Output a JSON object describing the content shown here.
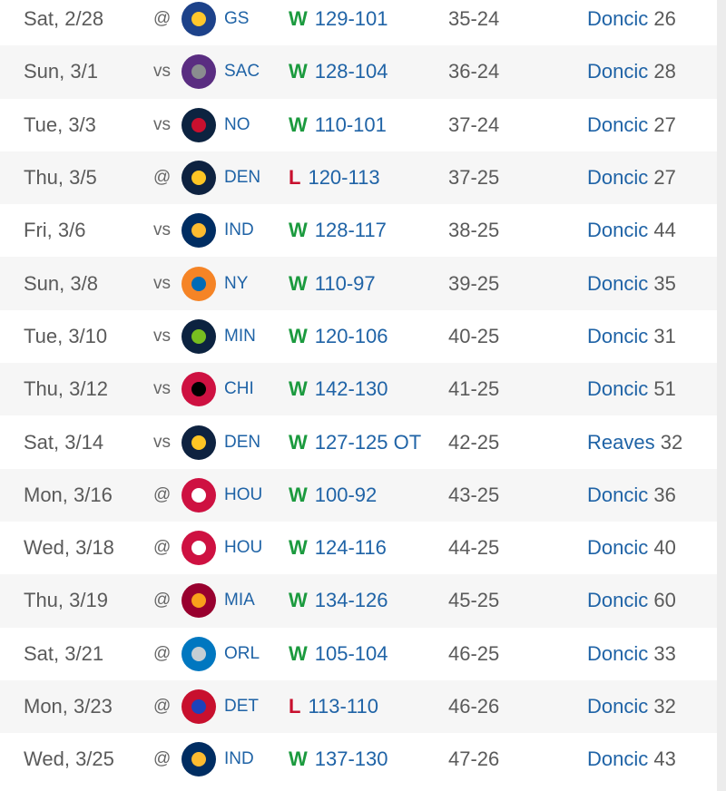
{
  "colors": {
    "win": "#1b9a3e",
    "loss": "#c8102e",
    "link": "#1f63a6",
    "text": "#5a5a5a"
  },
  "games": [
    {
      "date": "Sat, 2/28",
      "ha": "@",
      "team": "GS",
      "logo": "warriors-logo",
      "c1": "#1d428a",
      "c2": "#ffc72c",
      "wl": "W",
      "score": "129-101",
      "record": "35-24",
      "leader": "Doncic",
      "pts": "26"
    },
    {
      "date": "Sun, 3/1",
      "ha": "vs",
      "team": "SAC",
      "logo": "kings-logo",
      "c1": "#5a2d81",
      "c2": "#8a8d8f",
      "wl": "W",
      "score": "128-104",
      "record": "36-24",
      "leader": "Doncic",
      "pts": "28"
    },
    {
      "date": "Tue, 3/3",
      "ha": "vs",
      "team": "NO",
      "logo": "pelicans-logo",
      "c1": "#0c2340",
      "c2": "#c8102e",
      "wl": "W",
      "score": "110-101",
      "record": "37-24",
      "leader": "Doncic",
      "pts": "27"
    },
    {
      "date": "Thu, 3/5",
      "ha": "@",
      "team": "DEN",
      "logo": "nuggets-logo",
      "c1": "#0e2240",
      "c2": "#fec524",
      "wl": "L",
      "score": "120-113",
      "record": "37-25",
      "leader": "Doncic",
      "pts": "27"
    },
    {
      "date": "Fri, 3/6",
      "ha": "vs",
      "team": "IND",
      "logo": "pacers-logo",
      "c1": "#002d62",
      "c2": "#fdbb30",
      "wl": "W",
      "score": "128-117",
      "record": "38-25",
      "leader": "Doncic",
      "pts": "44"
    },
    {
      "date": "Sun, 3/8",
      "ha": "vs",
      "team": "NY",
      "logo": "knicks-logo",
      "c1": "#f58426",
      "c2": "#006bb6",
      "wl": "W",
      "score": "110-97",
      "record": "39-25",
      "leader": "Doncic",
      "pts": "35"
    },
    {
      "date": "Tue, 3/10",
      "ha": "vs",
      "team": "MIN",
      "logo": "timberwolves-logo",
      "c1": "#0c2340",
      "c2": "#78be20",
      "wl": "W",
      "score": "120-106",
      "record": "40-25",
      "leader": "Doncic",
      "pts": "31"
    },
    {
      "date": "Thu, 3/12",
      "ha": "vs",
      "team": "CHI",
      "logo": "bulls-logo",
      "c1": "#ce1141",
      "c2": "#000000",
      "wl": "W",
      "score": "142-130",
      "record": "41-25",
      "leader": "Doncic",
      "pts": "51"
    },
    {
      "date": "Sat, 3/14",
      "ha": "vs",
      "team": "DEN",
      "logo": "nuggets-logo",
      "c1": "#0e2240",
      "c2": "#fec524",
      "wl": "W",
      "score": "127-125 OT",
      "record": "42-25",
      "leader": "Reaves",
      "pts": "32"
    },
    {
      "date": "Mon, 3/16",
      "ha": "@",
      "team": "HOU",
      "logo": "rockets-logo",
      "c1": "#ce1141",
      "c2": "#ffffff",
      "wl": "W",
      "score": "100-92",
      "record": "43-25",
      "leader": "Doncic",
      "pts": "36"
    },
    {
      "date": "Wed, 3/18",
      "ha": "@",
      "team": "HOU",
      "logo": "rockets-logo",
      "c1": "#ce1141",
      "c2": "#ffffff",
      "wl": "W",
      "score": "124-116",
      "record": "44-25",
      "leader": "Doncic",
      "pts": "40"
    },
    {
      "date": "Thu, 3/19",
      "ha": "@",
      "team": "MIA",
      "logo": "heat-logo",
      "c1": "#98002e",
      "c2": "#f9a01b",
      "wl": "W",
      "score": "134-126",
      "record": "45-25",
      "leader": "Doncic",
      "pts": "60"
    },
    {
      "date": "Sat, 3/21",
      "ha": "@",
      "team": "ORL",
      "logo": "magic-logo",
      "c1": "#0077c0",
      "c2": "#c4ced4",
      "wl": "W",
      "score": "105-104",
      "record": "46-25",
      "leader": "Doncic",
      "pts": "33"
    },
    {
      "date": "Mon, 3/23",
      "ha": "@",
      "team": "DET",
      "logo": "pistons-logo",
      "c1": "#c8102e",
      "c2": "#1d42ba",
      "wl": "L",
      "score": "113-110",
      "record": "46-26",
      "leader": "Doncic",
      "pts": "32"
    },
    {
      "date": "Wed, 3/25",
      "ha": "@",
      "team": "IND",
      "logo": "pacers-logo",
      "c1": "#002d62",
      "c2": "#fdbb30",
      "wl": "W",
      "score": "137-130",
      "record": "47-26",
      "leader": "Doncic",
      "pts": "43"
    }
  ]
}
